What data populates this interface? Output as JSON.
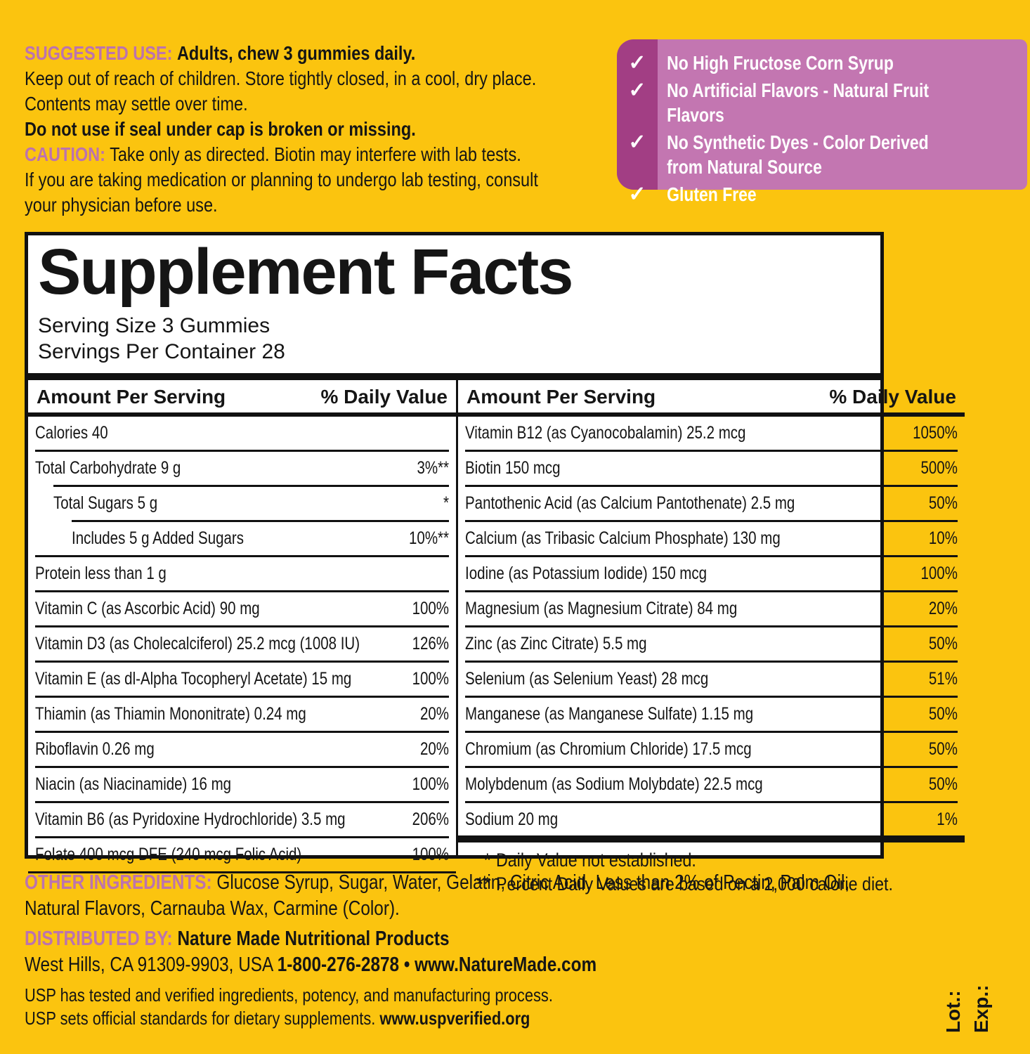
{
  "colors": {
    "background": "#FBC40F",
    "claims_box": "#C376B1",
    "claims_strip": "#A23E84",
    "purple_label": "#BC73AE",
    "panel_border": "#111111"
  },
  "usage": {
    "suggested_label": "SUGGESTED USE:",
    "suggested_text": "Adults, chew 3 gummies daily.",
    "storage_line1": "Keep out of reach of children. Store tightly closed, in a cool, dry place.",
    "storage_line2": "Contents may settle over time.",
    "seal_warning": "Do not use if seal under cap is broken or missing.",
    "caution_label": "CAUTION:",
    "caution_line1": "Take only as directed. Biotin may interfere with lab tests.",
    "caution_line2": "If you are taking medication or planning to undergo lab testing, consult",
    "caution_line3": "your physician before use."
  },
  "claims": {
    "checkmark": "✓",
    "items": [
      "No High Fructose Corn Syrup",
      "No Artificial Flavors - Natural Fruit Flavors",
      "No Synthetic Dyes - Color Derived\nfrom Natural Source",
      "Gluten Free"
    ]
  },
  "facts": {
    "title": "Supplement Facts",
    "serving_size": "Serving Size 3 Gummies",
    "servings_per_container": "Servings Per Container 28",
    "amount_header": "Amount Per Serving",
    "dv_header": "% Daily Value",
    "left_rows": [
      {
        "name": "Calories 40",
        "dv": ""
      },
      {
        "name": "Total Carbohydrate  9 g",
        "dv": "3%**"
      },
      {
        "name": "Total Sugars  5 g",
        "dv": "*",
        "indent": 1
      },
      {
        "name": "Includes  5 g Added Sugars",
        "dv": "10%**",
        "indent": 2
      },
      {
        "name": "Protein  less than 1 g",
        "dv": ""
      },
      {
        "name": "Vitamin C (as Ascorbic Acid)  90 mg",
        "dv": "100%"
      },
      {
        "name": "Vitamin D3 (as Cholecalciferol)  25.2 mcg (1008 IU)",
        "dv": "126%"
      },
      {
        "name": "Vitamin E (as dl-Alpha Tocopheryl Acetate)  15 mg",
        "dv": "100%"
      },
      {
        "name": "Thiamin (as Thiamin Mononitrate)  0.24 mg",
        "dv": "20%"
      },
      {
        "name": "Riboflavin  0.26 mg",
        "dv": "20%"
      },
      {
        "name": "Niacin (as Niacinamide)  16 mg",
        "dv": "100%"
      },
      {
        "name": "Vitamin B6 (as Pyridoxine Hydrochloride)  3.5 mg",
        "dv": "206%"
      },
      {
        "name": "Folate  400 mcg DFE (240 mcg Folic Acid)",
        "dv": "100%"
      }
    ],
    "right_rows": [
      {
        "name": "Vitamin B12 (as Cyanocobalamin)  25.2 mcg",
        "dv": "1050%"
      },
      {
        "name": "Biotin  150 mcg",
        "dv": "500%"
      },
      {
        "name": "Pantothenic Acid (as Calcium Pantothenate)  2.5 mg",
        "dv": "50%"
      },
      {
        "name": "Calcium (as Tribasic Calcium Phosphate)  130 mg",
        "dv": "10%"
      },
      {
        "name": "Iodine (as Potassium Iodide)  150 mcg",
        "dv": "100%"
      },
      {
        "name": "Magnesium (as Magnesium Citrate)  84 mg",
        "dv": "20%"
      },
      {
        "name": "Zinc (as Zinc Citrate)  5.5 mg",
        "dv": "50%"
      },
      {
        "name": "Selenium (as Selenium Yeast)  28 mcg",
        "dv": "51%"
      },
      {
        "name": "Manganese (as Manganese Sulfate)  1.15 mg",
        "dv": "50%"
      },
      {
        "name": "Chromium (as Chromium Chloride)  17.5 mcg",
        "dv": "50%"
      },
      {
        "name": "Molybdenum (as Sodium Molybdate)  22.5 mcg",
        "dv": "50%"
      },
      {
        "name": "Sodium  20 mg",
        "dv": "1%"
      }
    ],
    "footnote1_star": "*",
    "footnote1_text": "Daily Value not established.",
    "footnote2_star": "**",
    "footnote2_text": "Percent Daily Values are based on a 2,000 calorie diet."
  },
  "other_ingredients": {
    "label": "OTHER INGREDIENTS:",
    "line1": "Glucose Syrup, Sugar, Water, Gelatin, Citric Acid, Less than 2% of Pectin, Palm Oil,",
    "line2": "Natural Flavors, Carnauba Wax, Carmine (Color)."
  },
  "distributor": {
    "label": "DISTRIBUTED BY:",
    "name": "Nature Made Nutritional Products",
    "address": "West Hills, CA 91309-9903, USA",
    "phone_web": "1-800-276-2878 • www.NatureMade.com"
  },
  "usp": {
    "line1": "USP has tested and verified ingredients, potency, and manufacturing process.",
    "line2": "USP sets official standards for dietary supplements.",
    "line2_url": "www.uspverified.org"
  },
  "lot_label": "Lot.:",
  "exp_label": "Exp.:"
}
